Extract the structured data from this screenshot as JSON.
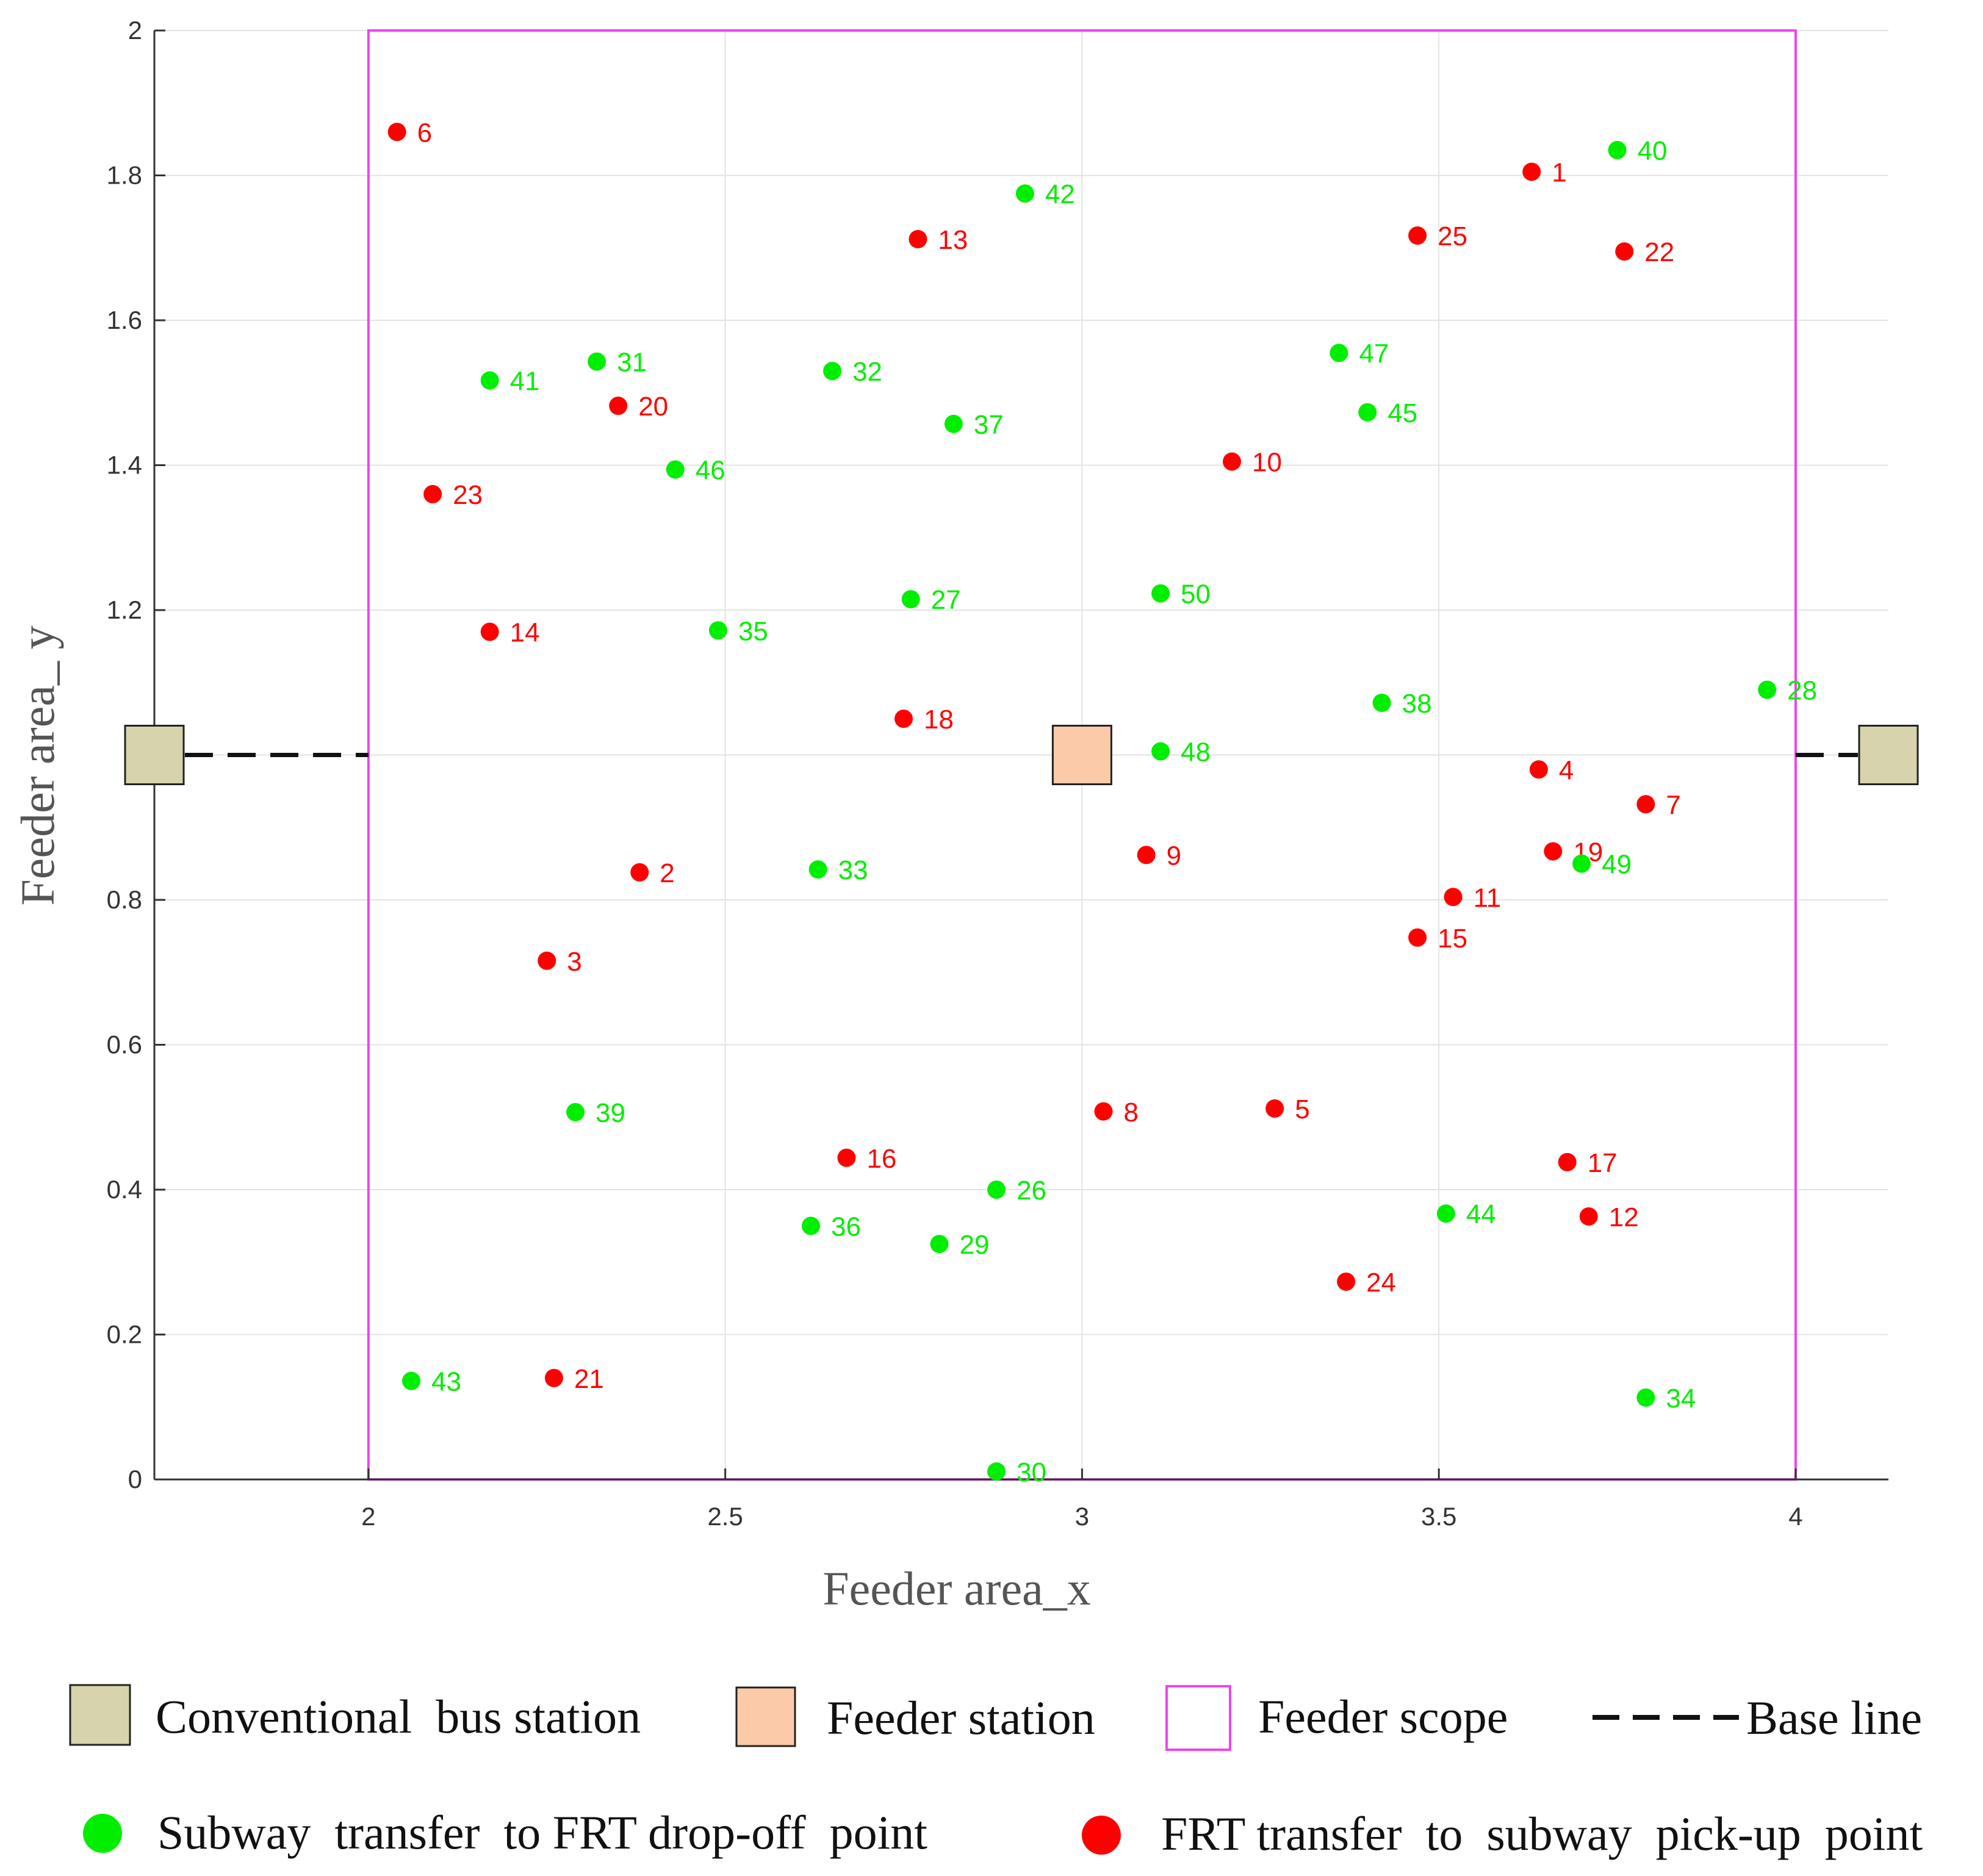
{
  "chart_data": {
    "type": "scatter",
    "xlabel": "Feeder area_x",
    "ylabel": "Feeder area_ y",
    "xlim": [
      1.7,
      4.13
    ],
    "ylim": [
      0,
      2
    ],
    "grid": true,
    "x_ticks": [
      2,
      2.5,
      3,
      3.5,
      4
    ],
    "x_tick_labels": [
      "2",
      "2.5",
      "3",
      "3.5",
      "4"
    ],
    "y_ticks": [
      0,
      0.2,
      0.4,
      0.6,
      0.8,
      1.2,
      1.4,
      1.6,
      1.8,
      2
    ],
    "y_tick_labels": [
      "0",
      "0.2",
      "0.4",
      "0.6",
      "0.8",
      "1.2",
      "1.4",
      "1.6",
      "1.8",
      "2"
    ],
    "feeder_scope": {
      "x": [
        2,
        4
      ],
      "y": [
        0,
        2
      ]
    },
    "base_line_y": 1.0,
    "feeder_station": {
      "x": 3.0,
      "y": 1.0
    },
    "conventional_bus_stations": [
      {
        "x": 1.7,
        "y": 1.0
      },
      {
        "x": 4.13,
        "y": 1.0
      }
    ],
    "colors": {
      "pickup": "#ff0000",
      "dropoff": "#00ee00",
      "scope": "#ee44ee",
      "bus_station": "#d6d3ad",
      "feeder_station": "#fbcaa8",
      "grid": "#e3e3e3",
      "axis": "#333333"
    },
    "series": [
      {
        "name": "FRT transfer to subway pick-up point",
        "color": "#ff0000",
        "points": [
          {
            "id": "1",
            "x": 3.63,
            "y": 1.805
          },
          {
            "id": "2",
            "x": 2.38,
            "y": 0.838
          },
          {
            "id": "3",
            "x": 2.25,
            "y": 0.716
          },
          {
            "id": "4",
            "x": 3.64,
            "y": 0.98
          },
          {
            "id": "5",
            "x": 3.27,
            "y": 0.512
          },
          {
            "id": "6",
            "x": 2.04,
            "y": 1.86
          },
          {
            "id": "7",
            "x": 3.79,
            "y": 0.932
          },
          {
            "id": "8",
            "x": 3.03,
            "y": 0.508
          },
          {
            "id": "9",
            "x": 3.09,
            "y": 0.862
          },
          {
            "id": "10",
            "x": 3.21,
            "y": 1.405
          },
          {
            "id": "11",
            "x": 3.52,
            "y": 0.804
          },
          {
            "id": "12",
            "x": 3.71,
            "y": 0.363
          },
          {
            "id": "13",
            "x": 2.77,
            "y": 1.712
          },
          {
            "id": "14",
            "x": 2.17,
            "y": 1.17
          },
          {
            "id": "15",
            "x": 3.47,
            "y": 0.748
          },
          {
            "id": "16",
            "x": 2.67,
            "y": 0.444
          },
          {
            "id": "17",
            "x": 3.68,
            "y": 0.438
          },
          {
            "id": "18",
            "x": 2.75,
            "y": 1.05
          },
          {
            "id": "19",
            "x": 3.66,
            "y": 0.867
          },
          {
            "id": "20",
            "x": 2.35,
            "y": 1.482
          },
          {
            "id": "21",
            "x": 2.26,
            "y": 0.14
          },
          {
            "id": "22",
            "x": 3.76,
            "y": 1.695
          },
          {
            "id": "23",
            "x": 2.09,
            "y": 1.36
          },
          {
            "id": "24",
            "x": 3.37,
            "y": 0.273
          },
          {
            "id": "25",
            "x": 3.47,
            "y": 1.717
          }
        ]
      },
      {
        "name": "Subway transfer to FRT drop-off point",
        "color": "#00ee00",
        "points": [
          {
            "id": "26",
            "x": 2.88,
            "y": 0.4
          },
          {
            "id": "27",
            "x": 2.76,
            "y": 1.215
          },
          {
            "id": "28",
            "x": 3.96,
            "y": 1.09
          },
          {
            "id": "29",
            "x": 2.8,
            "y": 0.325
          },
          {
            "id": "30",
            "x": 2.88,
            "y": 0.011
          },
          {
            "id": "31",
            "x": 2.32,
            "y": 1.543
          },
          {
            "id": "32",
            "x": 2.65,
            "y": 1.53
          },
          {
            "id": "33",
            "x": 2.63,
            "y": 0.842
          },
          {
            "id": "34",
            "x": 3.79,
            "y": 0.113
          },
          {
            "id": "35",
            "x": 2.49,
            "y": 1.172
          },
          {
            "id": "36",
            "x": 2.62,
            "y": 0.35
          },
          {
            "id": "37",
            "x": 2.82,
            "y": 1.457
          },
          {
            "id": "38",
            "x": 3.42,
            "y": 1.072
          },
          {
            "id": "39",
            "x": 2.29,
            "y": 0.507
          },
          {
            "id": "40",
            "x": 3.75,
            "y": 1.835
          },
          {
            "id": "41",
            "x": 2.17,
            "y": 1.517
          },
          {
            "id": "42",
            "x": 2.92,
            "y": 1.775
          },
          {
            "id": "43",
            "x": 2.06,
            "y": 0.136
          },
          {
            "id": "44",
            "x": 3.51,
            "y": 0.367
          },
          {
            "id": "45",
            "x": 3.4,
            "y": 1.473
          },
          {
            "id": "46",
            "x": 2.43,
            "y": 1.394
          },
          {
            "id": "47",
            "x": 3.36,
            "y": 1.555
          },
          {
            "id": "48",
            "x": 3.11,
            "y": 1.005
          },
          {
            "id": "49",
            "x": 3.7,
            "y": 0.85
          },
          {
            "id": "50",
            "x": 3.11,
            "y": 1.223
          }
        ]
      }
    ],
    "legend": {
      "bus_station": "Conventional  bus station",
      "feeder_station": "Feeder station",
      "feeder_scope": "Feeder scope",
      "base_line": "Base line",
      "dropoff": "Subway  transfer  to FRT drop-off  point",
      "pickup": "FRT transfer  to  subway  pick-up  point"
    }
  }
}
